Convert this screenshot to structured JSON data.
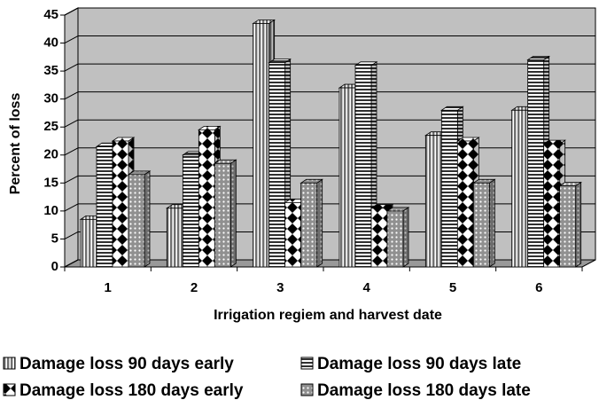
{
  "chart_data": {
    "type": "bar3d",
    "x_label": "Irrigation regiem and harvest date",
    "y_label": "Percent of loss",
    "categories": [
      "1",
      "2",
      "3",
      "4",
      "5",
      "6"
    ],
    "series": [
      {
        "name": "Damage loss 90 days early",
        "color": "#707070",
        "values": [
          8.5,
          10.5,
          43.5,
          32,
          23.5,
          28
        ]
      },
      {
        "name": "Damage loss 90 days late",
        "color": "#303030",
        "values": [
          21.5,
          20,
          36.5,
          36,
          28,
          37
        ]
      },
      {
        "name": "Damage loss 180 days early",
        "color": "#000000",
        "values": [
          22.5,
          24.5,
          11.5,
          10.5,
          22.5,
          22
        ]
      },
      {
        "name": "Damage loss 180 days late",
        "color": "#909090",
        "values": [
          16.5,
          18.5,
          15,
          10,
          15,
          14.5
        ]
      }
    ],
    "ylim": [
      0,
      45
    ],
    "yticks": [
      0,
      5,
      10,
      15,
      20,
      25,
      30,
      35,
      40,
      45
    ],
    "grid": true,
    "legend": "bottom"
  }
}
